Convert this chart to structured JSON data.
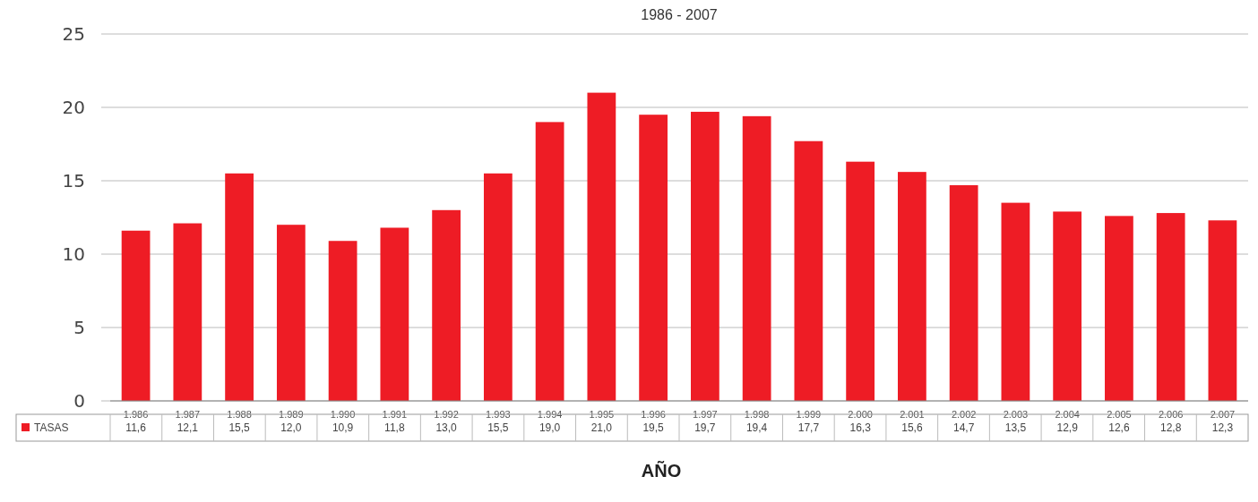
{
  "chart_data": {
    "type": "bar",
    "title": "1986 - 2007",
    "xlabel": "AÑO",
    "categories": [
      "1.986",
      "1.987",
      "1.988",
      "1.989",
      "1.990",
      "1.991",
      "1.992",
      "1.993",
      "1.994",
      "1.995",
      "1.996",
      "1.997",
      "1.998",
      "1.999",
      "2.000",
      "2.001",
      "2.002",
      "2.003",
      "2.004",
      "2.005",
      "2.006",
      "2.007"
    ],
    "series": [
      {
        "name": "TASAS",
        "color": "#ee1c25",
        "values": [
          11.6,
          12.1,
          15.5,
          12.0,
          10.9,
          11.8,
          13.0,
          15.5,
          19.0,
          21.0,
          19.5,
          19.7,
          19.4,
          17.7,
          16.3,
          15.6,
          14.7,
          13.5,
          12.9,
          12.6,
          12.8,
          12.3
        ],
        "value_labels": [
          "11,6",
          "12,1",
          "15,5",
          "12,0",
          "10,9",
          "11,8",
          "13,0",
          "15,5",
          "19,0",
          "21,0",
          "19,5",
          "19,7",
          "19,4",
          "17,7",
          "16,3",
          "15,6",
          "14,7",
          "13,5",
          "12,9",
          "12,6",
          "12,8",
          "12,3"
        ]
      }
    ],
    "ylim": [
      0,
      25
    ],
    "yticks": [
      0,
      5,
      10,
      15,
      20,
      25
    ],
    "grid": "y",
    "legend": "bottom left"
  }
}
